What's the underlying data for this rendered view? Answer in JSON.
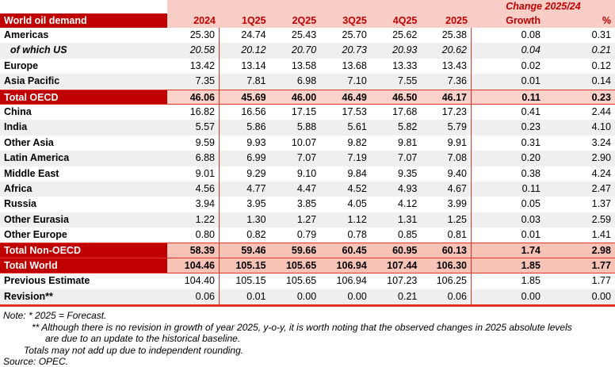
{
  "colors": {
    "dark_red": "#C00000",
    "pink_header": "#FACDC6",
    "pink_oecd": "#FBD2C9",
    "pink_total": "#F8C3B7",
    "stripe_gray": "#EFEFEF",
    "line_red": "#E03226",
    "red_text": "#C00000"
  },
  "table": {
    "change_header": "Change 2025/24",
    "columns": [
      "World oil demand",
      "2024",
      "1Q25",
      "2Q25",
      "3Q25",
      "4Q25",
      "2025",
      "Growth",
      "%"
    ],
    "rows": [
      {
        "label": "Americas",
        "values": [
          "25.30",
          "24.74",
          "25.43",
          "25.70",
          "25.62",
          "25.38",
          "0.08",
          "0.31"
        ],
        "shade": "white"
      },
      {
        "label": "of which US",
        "values": [
          "20.58",
          "20.12",
          "20.70",
          "20.73",
          "20.93",
          "20.62",
          "0.04",
          "0.21"
        ],
        "shade": "gray",
        "italic": true,
        "indent": true
      },
      {
        "label": "Europe",
        "values": [
          "13.42",
          "13.14",
          "13.58",
          "13.68",
          "13.33",
          "13.43",
          "0.02",
          "0.12"
        ],
        "shade": "white"
      },
      {
        "label": "Asia Pacific",
        "values": [
          "7.35",
          "7.81",
          "6.98",
          "7.10",
          "7.55",
          "7.36",
          "0.01",
          "0.14"
        ],
        "shade": "gray"
      },
      {
        "label": "Total OECD",
        "values": [
          "46.06",
          "45.69",
          "46.00",
          "46.49",
          "46.50",
          "46.17",
          "0.11",
          "0.23"
        ],
        "shade": "pink1",
        "label_dark": true,
        "bold": true,
        "border_top": true,
        "border_bottom": true
      },
      {
        "label": "China",
        "values": [
          "16.82",
          "16.56",
          "17.15",
          "17.53",
          "17.68",
          "17.23",
          "0.41",
          "2.44"
        ],
        "shade": "white"
      },
      {
        "label": "India",
        "values": [
          "5.57",
          "5.86",
          "5.88",
          "5.61",
          "5.82",
          "5.79",
          "0.23",
          "4.10"
        ],
        "shade": "gray"
      },
      {
        "label": "Other Asia",
        "values": [
          "9.59",
          "9.93",
          "10.07",
          "9.82",
          "9.81",
          "9.91",
          "0.31",
          "3.24"
        ],
        "shade": "white"
      },
      {
        "label": "Latin America",
        "values": [
          "6.88",
          "6.99",
          "7.07",
          "7.19",
          "7.07",
          "7.08",
          "0.20",
          "2.90"
        ],
        "shade": "gray"
      },
      {
        "label": "Middle East",
        "values": [
          "9.01",
          "9.29",
          "9.10",
          "9.84",
          "9.35",
          "9.40",
          "0.38",
          "4.24"
        ],
        "shade": "white"
      },
      {
        "label": "Africa",
        "values": [
          "4.56",
          "4.77",
          "4.47",
          "4.52",
          "4.93",
          "4.67",
          "0.11",
          "2.47"
        ],
        "shade": "gray"
      },
      {
        "label": "Russia",
        "values": [
          "3.94",
          "3.95",
          "3.85",
          "4.05",
          "4.12",
          "3.99",
          "0.05",
          "1.37"
        ],
        "shade": "white"
      },
      {
        "label": "Other Eurasia",
        "values": [
          "1.22",
          "1.30",
          "1.27",
          "1.12",
          "1.31",
          "1.25",
          "0.03",
          "2.59"
        ],
        "shade": "gray"
      },
      {
        "label": "Other Europe",
        "values": [
          "0.80",
          "0.82",
          "0.79",
          "0.78",
          "0.85",
          "0.81",
          "0.01",
          "1.41"
        ],
        "shade": "white"
      },
      {
        "label": "Total Non-OECD",
        "values": [
          "58.39",
          "59.46",
          "59.66",
          "60.45",
          "60.95",
          "60.13",
          "1.74",
          "2.98"
        ],
        "shade": "pink2",
        "label_dark": true,
        "bold": true,
        "border_top": true,
        "border_bottom": true
      },
      {
        "label": "Total World",
        "values": [
          "104.46",
          "105.15",
          "105.65",
          "106.94",
          "107.44",
          "106.30",
          "1.85",
          "1.77"
        ],
        "shade": "pink2",
        "label_dark": true,
        "bold": true,
        "border_bottom": true
      },
      {
        "label": "Previous Estimate",
        "values": [
          "104.40",
          "105.15",
          "105.65",
          "106.94",
          "107.23",
          "106.25",
          "1.85",
          "1.77"
        ],
        "shade": "white"
      },
      {
        "label": "Revision**",
        "values": [
          "0.06",
          "0.01",
          "0.00",
          "0.00",
          "0.21",
          "0.06",
          "0.00",
          "0.00"
        ],
        "shade": "gray"
      }
    ]
  },
  "notes": {
    "line1": "Note: * 2025 = Forecast.",
    "line2": "** Although there is no revision in growth of year 2025, y-o-y, it is worth noting that the observed changes in 2025 absolute levels",
    "line3": "are due to an update to the historical baseline.",
    "line4": "Totals may not add up due to independent rounding.",
    "line5": "Source: OPEC."
  }
}
